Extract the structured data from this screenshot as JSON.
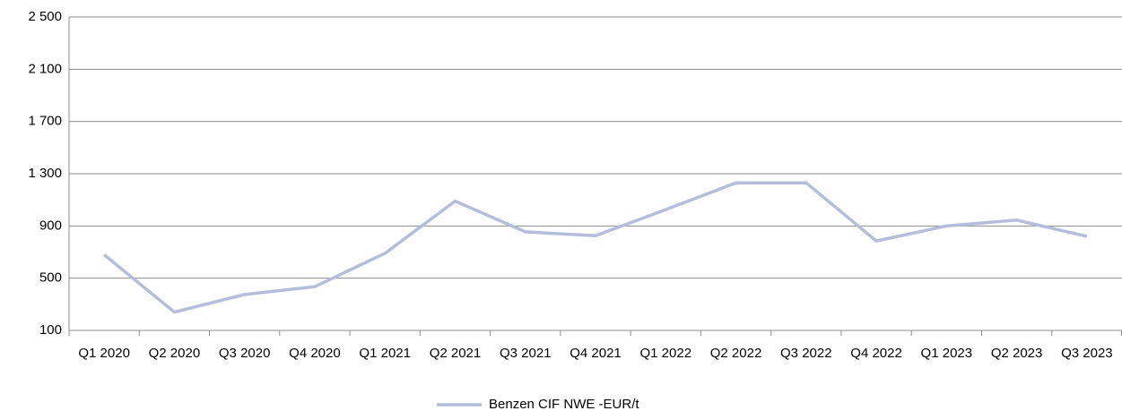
{
  "chart_data": {
    "type": "line",
    "categories": [
      "Q1 2020",
      "Q2 2020",
      "Q3 2020",
      "Q4 2020",
      "Q1 2021",
      "Q2 2021",
      "Q3 2021",
      "Q4 2021",
      "Q1 2022",
      "Q2 2022",
      "Q3 2022",
      "Q4 2022",
      "Q1 2023",
      "Q2 2023",
      "Q3 2023"
    ],
    "series": [
      {
        "name": "Benzen CIF NWE -EUR/t",
        "color": "#b4bdda",
        "values": [
          680,
          240,
          375,
          435,
          690,
          1090,
          855,
          825,
          1025,
          1230,
          1230,
          785,
          900,
          945,
          820
        ]
      }
    ],
    "ylim": [
      100,
      2500
    ],
    "yticks": [
      100,
      500,
      900,
      {
        "value": 1300,
        "label": "1 300"
      },
      {
        "value": 1700,
        "label": "1 700"
      },
      {
        "value": 2100,
        "label": "2 100"
      },
      {
        "value": 2500,
        "label": "2 500"
      }
    ],
    "grid": true,
    "legend": "bottom"
  }
}
